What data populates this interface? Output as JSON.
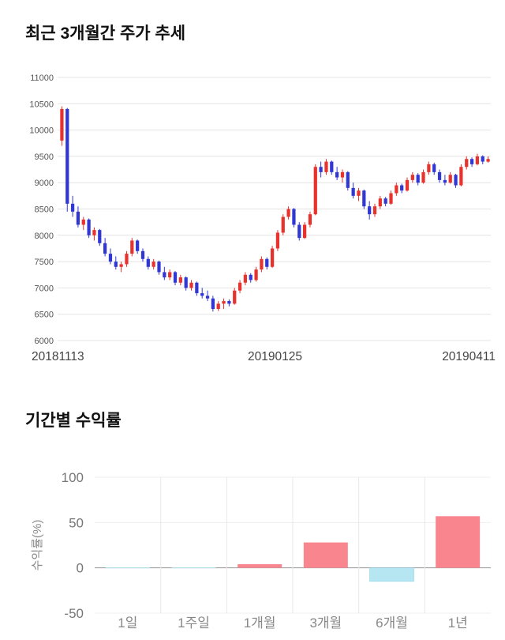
{
  "chart_data": [
    {
      "type": "candlestick",
      "title": "최근 3개월간 주가 추세",
      "x_tick_labels": [
        "20181113",
        "20190125",
        "20190411"
      ],
      "y_ticks": [
        11000,
        10500,
        10000,
        9500,
        9000,
        8500,
        8000,
        7500,
        7000,
        6500,
        6000
      ],
      "ylim": [
        6000,
        11000
      ],
      "grid": true,
      "up_color": "#e8322d",
      "down_color": "#3137d3",
      "grid_color": "#e4e4e4",
      "candles": [
        [
          9800,
          10450,
          9700,
          10400
        ],
        [
          10400,
          10420,
          8450,
          8600
        ],
        [
          8600,
          8750,
          8350,
          8450
        ],
        [
          8450,
          8550,
          8150,
          8200
        ],
        [
          8200,
          8350,
          8100,
          8300
        ],
        [
          8300,
          8320,
          7950,
          8000
        ],
        [
          8000,
          8150,
          7900,
          8100
        ],
        [
          8100,
          8120,
          7800,
          7850
        ],
        [
          7850,
          7950,
          7600,
          7650
        ],
        [
          7650,
          7750,
          7450,
          7500
        ],
        [
          7500,
          7600,
          7350,
          7400
        ],
        [
          7400,
          7500,
          7300,
          7450
        ],
        [
          7450,
          7700,
          7400,
          7650
        ],
        [
          7650,
          7950,
          7600,
          7900
        ],
        [
          7900,
          7920,
          7650,
          7700
        ],
        [
          7700,
          7750,
          7500,
          7550
        ],
        [
          7550,
          7600,
          7350,
          7400
        ],
        [
          7400,
          7550,
          7350,
          7500
        ],
        [
          7500,
          7520,
          7250,
          7300
        ],
        [
          7300,
          7400,
          7150,
          7200
        ],
        [
          7200,
          7350,
          7150,
          7300
        ],
        [
          7300,
          7320,
          7050,
          7100
        ],
        [
          7100,
          7250,
          7050,
          7200
        ],
        [
          7200,
          7220,
          6950,
          7000
        ],
        [
          7000,
          7150,
          6950,
          7100
        ],
        [
          7100,
          7120,
          6850,
          6900
        ],
        [
          6900,
          7000,
          6800,
          6850
        ],
        [
          6850,
          6950,
          6750,
          6800
        ],
        [
          6800,
          6850,
          6550,
          6600
        ],
        [
          6600,
          6750,
          6560,
          6700
        ],
        [
          6700,
          6800,
          6600,
          6750
        ],
        [
          6750,
          6780,
          6650,
          6700
        ],
        [
          6700,
          7000,
          6680,
          6950
        ],
        [
          6950,
          7150,
          6900,
          7100
        ],
        [
          7100,
          7300,
          7050,
          7250
        ],
        [
          7250,
          7280,
          7100,
          7150
        ],
        [
          7150,
          7400,
          7120,
          7350
        ],
        [
          7350,
          7600,
          7300,
          7550
        ],
        [
          7550,
          7580,
          7350,
          7400
        ],
        [
          7400,
          7800,
          7380,
          7750
        ],
        [
          7750,
          8100,
          7700,
          8050
        ],
        [
          8050,
          8400,
          8000,
          8350
        ],
        [
          8350,
          8550,
          8300,
          8500
        ],
        [
          8500,
          8520,
          8150,
          8200
        ],
        [
          8200,
          8250,
          7900,
          7950
        ],
        [
          7950,
          8250,
          7930,
          8200
        ],
        [
          8200,
          8450,
          8150,
          8400
        ],
        [
          8400,
          9350,
          8380,
          9300
        ],
        [
          9300,
          9400,
          9100,
          9200
        ],
        [
          9200,
          9450,
          9150,
          9400
        ],
        [
          9400,
          9420,
          9150,
          9200
        ],
        [
          9200,
          9300,
          9050,
          9100
        ],
        [
          9100,
          9250,
          9000,
          9200
        ],
        [
          9200,
          9220,
          8850,
          8900
        ],
        [
          8900,
          9000,
          8700,
          8750
        ],
        [
          8750,
          8900,
          8650,
          8850
        ],
        [
          8850,
          8870,
          8500,
          8550
        ],
        [
          8550,
          8650,
          8300,
          8400
        ],
        [
          8400,
          8600,
          8350,
          8550
        ],
        [
          8550,
          8750,
          8500,
          8700
        ],
        [
          8700,
          8730,
          8550,
          8600
        ],
        [
          8600,
          8850,
          8580,
          8800
        ],
        [
          8800,
          9000,
          8750,
          8950
        ],
        [
          8950,
          8980,
          8800,
          8850
        ],
        [
          8850,
          9100,
          8830,
          9050
        ],
        [
          9050,
          9200,
          9000,
          9150
        ],
        [
          9150,
          9180,
          8950,
          9000
        ],
        [
          9000,
          9250,
          8980,
          9200
        ],
        [
          9200,
          9400,
          9150,
          9350
        ],
        [
          9350,
          9380,
          9150,
          9200
        ],
        [
          9200,
          9250,
          9000,
          9050
        ],
        [
          9050,
          9150,
          8950,
          9000
        ],
        [
          9000,
          9200,
          8980,
          9150
        ],
        [
          9150,
          9170,
          8900,
          8950
        ],
        [
          8950,
          9350,
          8930,
          9300
        ],
        [
          9300,
          9500,
          9250,
          9450
        ],
        [
          9450,
          9480,
          9300,
          9350
        ],
        [
          9350,
          9550,
          9330,
          9500
        ],
        [
          9500,
          9520,
          9350,
          9400
        ],
        [
          9400,
          9500,
          9380,
          9450
        ]
      ]
    },
    {
      "type": "bar",
      "title": "기간별 수익률",
      "ylabel": "수익률(%)",
      "categories": [
        "1일",
        "1주일",
        "1개월",
        "3개월",
        "6개월",
        "1년"
      ],
      "values": [
        0,
        0,
        4,
        28,
        -15,
        57
      ],
      "y_ticks": [
        100,
        50,
        0,
        -50
      ],
      "ylim": [
        -50,
        100
      ],
      "grid": true,
      "legend": "none",
      "positive_color": "#f9858e",
      "negative_color": "#b5e6f2",
      "negative_border_color": "#86cfe4",
      "zero_line_color": "#9a9a9a",
      "grid_color": "#e8e8e8"
    }
  ]
}
